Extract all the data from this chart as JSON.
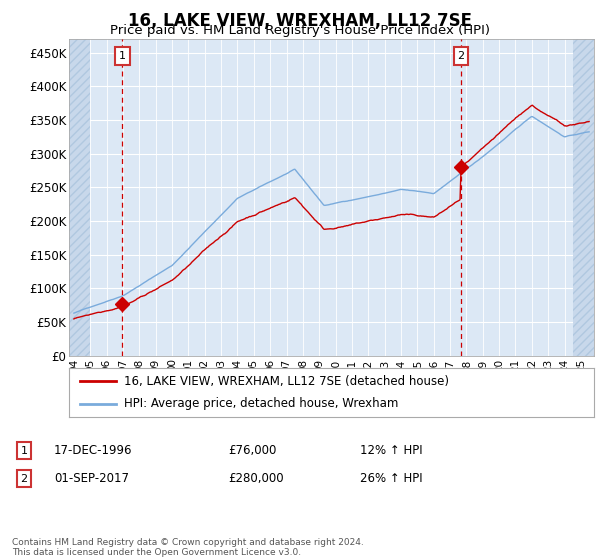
{
  "title": "16, LAKE VIEW, WREXHAM, LL12 7SE",
  "subtitle": "Price paid vs. HM Land Registry's House Price Index (HPI)",
  "ylabel_ticks": [
    "£0",
    "£50K",
    "£100K",
    "£150K",
    "£200K",
    "£250K",
    "£300K",
    "£350K",
    "£400K",
    "£450K"
  ],
  "ytick_values": [
    0,
    50000,
    100000,
    150000,
    200000,
    250000,
    300000,
    350000,
    400000,
    450000
  ],
  "ylim": [
    0,
    470000
  ],
  "xlim_start": 1993.7,
  "xlim_end": 2025.8,
  "sale1_x": 1996.96,
  "sale1_y": 76000,
  "sale2_x": 2017.67,
  "sale2_y": 280000,
  "sale1_label": "1",
  "sale2_label": "2",
  "vline_color": "#cc0000",
  "line_color_red": "#cc0000",
  "line_color_blue": "#7aabdc",
  "plot_bg_color": "#dce8f5",
  "grid_color": "#ffffff",
  "hatch_color": "#c8d8eb",
  "legend_label_red": "16, LAKE VIEW, WREXHAM, LL12 7SE (detached house)",
  "legend_label_blue": "HPI: Average price, detached house, Wrexham",
  "table_row1": [
    "1",
    "17-DEC-1996",
    "£76,000",
    "12% ↑ HPI"
  ],
  "table_row2": [
    "2",
    "01-SEP-2017",
    "£280,000",
    "26% ↑ HPI"
  ],
  "footer": "Contains HM Land Registry data © Crown copyright and database right 2024.\nThis data is licensed under the Open Government Licence v3.0.",
  "annotation_box_color": "#cc3333",
  "xtick_labels": [
    "94",
    "95",
    "96",
    "97",
    "98",
    "99",
    "00",
    "01",
    "02",
    "03",
    "04",
    "05",
    "06",
    "07",
    "08",
    "09",
    "10",
    "11",
    "12",
    "13",
    "14",
    "15",
    "16",
    "17",
    "18",
    "19",
    "20",
    "21",
    "22",
    "23",
    "24",
    "25"
  ],
  "xtick_years": [
    1994,
    1995,
    1996,
    1997,
    1998,
    1999,
    2000,
    2001,
    2002,
    2003,
    2004,
    2005,
    2006,
    2007,
    2008,
    2009,
    2010,
    2011,
    2012,
    2013,
    2014,
    2015,
    2016,
    2017,
    2018,
    2019,
    2020,
    2021,
    2022,
    2023,
    2024,
    2025
  ]
}
